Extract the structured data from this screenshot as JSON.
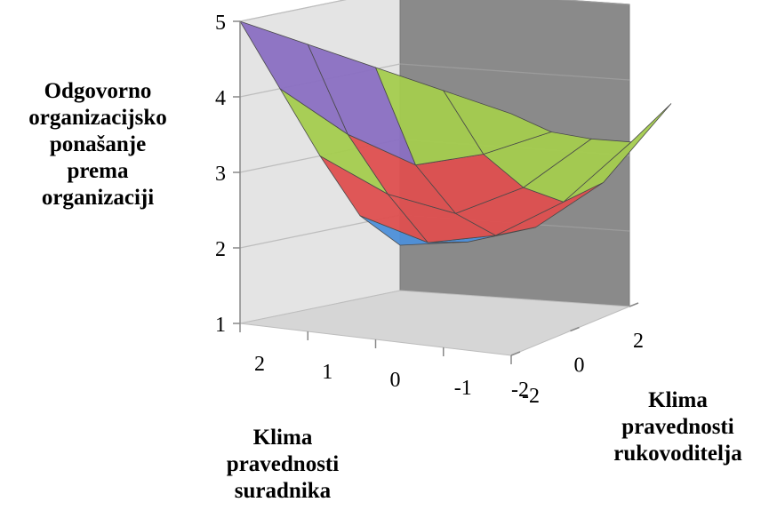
{
  "chart_data": {
    "type": "surface",
    "zlabel": "Odgovorno\norganizacijsko\nponašanje\nprema\norganizaciji",
    "xlabel": "Klima\npravednosti\nsuradnika",
    "ylabel": "Klima\npravednosti\nrukovoditelja",
    "x_ticks": [
      "2",
      "1",
      "0",
      "-1",
      "-2"
    ],
    "y_ticks": [
      "-2",
      "0",
      "2"
    ],
    "z_ticks": [
      "1",
      "2",
      "3",
      "4",
      "5"
    ],
    "zlim": [
      1,
      5
    ],
    "x_values": [
      2,
      1,
      0,
      -1,
      -2
    ],
    "y_values": [
      -2,
      -1,
      0,
      1,
      2
    ],
    "z": [
      [
        5.0,
        4.8,
        4.6,
        4.4,
        4.2
      ],
      [
        4.0,
        3.5,
        3.2,
        3.45,
        3.85
      ],
      [
        3.0,
        2.6,
        2.45,
        2.9,
        3.65
      ],
      [
        2.1,
        1.85,
        2.05,
        2.6,
        3.5
      ],
      [
        1.6,
        1.75,
        2.05,
        2.75,
        3.9
      ]
    ],
    "bands": [
      {
        "range": [
          1,
          2
        ],
        "color": "#4d8fd9"
      },
      {
        "range": [
          2,
          3
        ],
        "color": "#de4f4f"
      },
      {
        "range": [
          3,
          4
        ],
        "color": "#a4cc4e"
      },
      {
        "range": [
          4,
          5
        ],
        "color": "#8a6fc2"
      }
    ],
    "colors": {
      "side_wall": "#e4e4e4",
      "back_wall": "#8a8a8a",
      "floor": "#d6d6d6",
      "grid": "#bdbdbd"
    }
  }
}
